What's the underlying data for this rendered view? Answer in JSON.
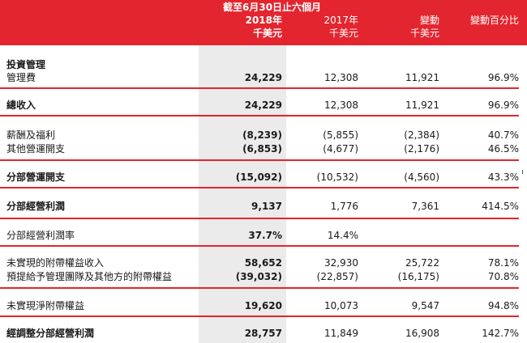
{
  "header": {
    "period": "截至6月30日止六個月",
    "col_2018_year": "2018年",
    "col_2018_unit": "千美元",
    "col_2017_year": "2017年",
    "col_2017_unit": "千美元",
    "col_change": "變動",
    "col_change_unit": "千美元",
    "col_change_pct": "變動百分比"
  },
  "rows": [
    {
      "label": "投資管理",
      "v2018": "",
      "v2017": "",
      "chg": "",
      "pct": ""
    },
    {
      "label": "管理費",
      "v2018": "24,229",
      "v2017": "12,308",
      "chg": "11,921",
      "pct": "96.9%"
    },
    {
      "label": "總收入",
      "v2018": "24,229",
      "v2017": "12,308",
      "chg": "11,921",
      "pct": "96.9%"
    },
    {
      "label": "薪酬及福利",
      "v2018": "(8,239)",
      "v2017": "(5,855)",
      "chg": "(2,384)",
      "pct": "40.7%"
    },
    {
      "label": "其他營運開支",
      "v2018": "(6,853)",
      "v2017": "(4,677)",
      "chg": "(2,176)",
      "pct": "46.5%"
    },
    {
      "label": "分部營運開支",
      "v2018": "(15,092)",
      "v2017": "(10,532)",
      "chg": "(4,560)",
      "pct": "43.3%"
    },
    {
      "label": "分部經營利潤",
      "v2018": "9,137",
      "v2017": "1,776",
      "chg": "7,361",
      "pct": "414.5%"
    },
    {
      "label": "分部經營利潤率",
      "v2018": "37.7%",
      "v2017": "14.4%",
      "chg": "",
      "pct": ""
    },
    {
      "label": "未實現的附帶權益收入",
      "v2018": "58,652",
      "v2017": "32,930",
      "chg": "25,722",
      "pct": "78.1%"
    },
    {
      "label": "預提給予管理團隊及其他方的附帶權益",
      "v2018": "(39,032)",
      "v2017": "(22,857)",
      "chg": "(16,175)",
      "pct": "70.8%"
    },
    {
      "label": "未實現淨附帶權益",
      "v2018": "19,620",
      "v2017": "10,073",
      "chg": "9,547",
      "pct": "94.8%"
    },
    {
      "label": "經調整分部經營利潤",
      "v2018": "28,757",
      "v2017": "11,849",
      "chg": "16,908",
      "pct": "142.7%"
    }
  ],
  "colors": {
    "accent": "#e3252f",
    "shade": "#ebebeb"
  }
}
